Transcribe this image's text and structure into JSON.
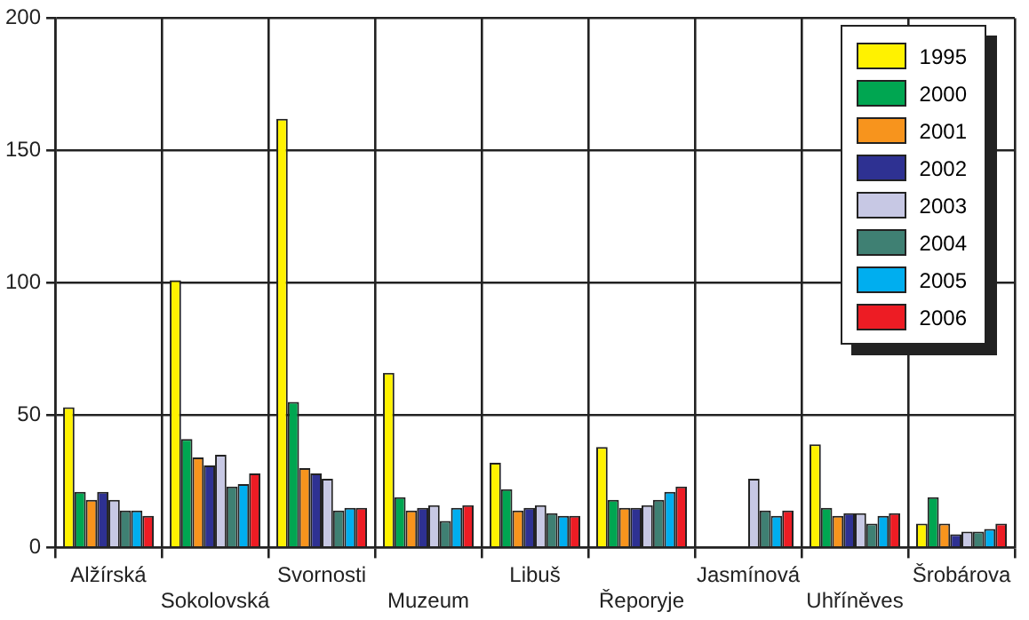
{
  "chart_data": {
    "type": "bar",
    "categories": [
      "Alžírská",
      "Sokolovská",
      "Svornosti",
      "Muzeum",
      "Libuš",
      "Řeporyje",
      "Jasmínová",
      "Uhříněves",
      "Šrobárova"
    ],
    "series": [
      {
        "name": "1995",
        "color": "#fff200",
        "values": [
          53,
          101,
          162,
          66,
          32,
          38,
          null,
          39,
          9
        ]
      },
      {
        "name": "2000",
        "color": "#00a651",
        "values": [
          21,
          41,
          55,
          19,
          22,
          18,
          null,
          15,
          19
        ]
      },
      {
        "name": "2001",
        "color": "#f7941d",
        "values": [
          18,
          34,
          30,
          14,
          14,
          15,
          null,
          12,
          9
        ]
      },
      {
        "name": "2002",
        "color": "#2e3192",
        "values": [
          21,
          31,
          28,
          15,
          15,
          15,
          null,
          13,
          5
        ]
      },
      {
        "name": "2003",
        "color": "#c7c8e4",
        "values": [
          18,
          35,
          26,
          16,
          16,
          16,
          26,
          13,
          6
        ]
      },
      {
        "name": "2004",
        "color": "#3f8073",
        "values": [
          14,
          23,
          14,
          10,
          13,
          18,
          14,
          9,
          6
        ]
      },
      {
        "name": "2005",
        "color": "#00aeef",
        "values": [
          14,
          24,
          15,
          15,
          12,
          21,
          12,
          12,
          7
        ]
      },
      {
        "name": "2006",
        "color": "#ed1c24",
        "values": [
          12,
          28,
          15,
          16,
          12,
          23,
          14,
          13,
          9
        ]
      }
    ],
    "ylim": [
      0,
      200
    ],
    "yticks": [
      0,
      50,
      100,
      150,
      200
    ],
    "grid": true,
    "legend": "top right"
  }
}
